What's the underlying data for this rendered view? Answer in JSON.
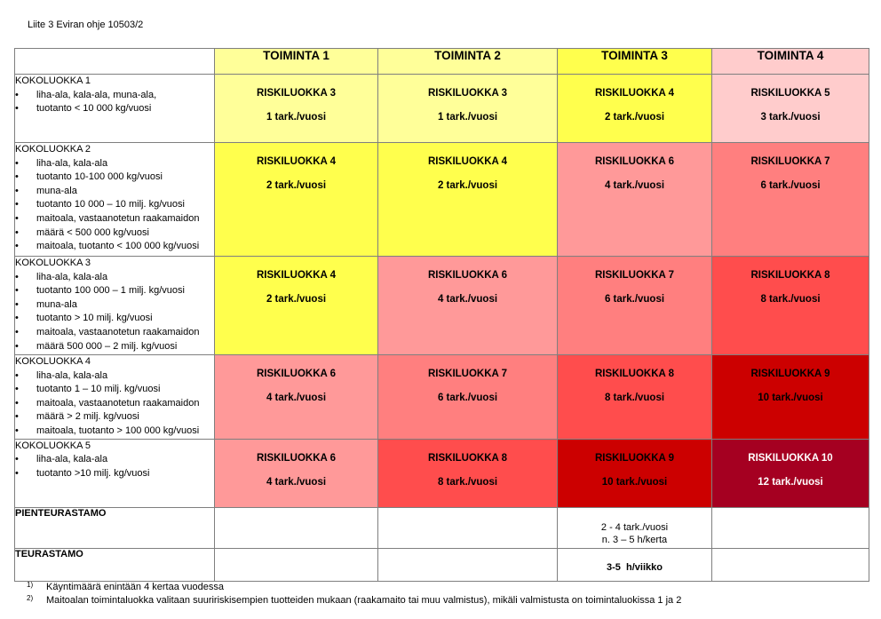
{
  "header": "Liite 3 Eviran ohje 10503/2",
  "columns": [
    "TOIMINTA 1",
    "TOIMINTA 2",
    "TOIMINTA 3",
    "TOIMINTA 4"
  ],
  "header_colors": [
    "#FFFF99",
    "#FFFF99",
    "#FFFF4D",
    "#FFCCCC"
  ],
  "rows": [
    {
      "category": "KOKOLUOKKA 1",
      "items": [
        "liha-ala, kala-ala, muna-ala,",
        "tuotanto < 10 000 kg/vuosi"
      ],
      "cells": [
        {
          "risk": "RISKILUOKKA 3",
          "inspections": "1  tark./vuosi",
          "color": "#FFFF99",
          "text_color": "#000000"
        },
        {
          "risk": "RISKILUOKKA 3",
          "inspections": "1 tark./vuosi",
          "color": "#FFFF99",
          "text_color": "#000000"
        },
        {
          "risk": "RISKILUOKKA 4",
          "inspections": "2 tark./vuosi",
          "color": "#FFFF4D",
          "text_color": "#000000"
        },
        {
          "risk": "RISKILUOKKA 5",
          "inspections": "3 tark./vuosi",
          "color": "#FFCCCC",
          "text_color": "#000000"
        }
      ]
    },
    {
      "category": "KOKOLUOKKA 2",
      "items": [
        "liha-ala, kala-ala",
        "tuotanto 10-100 000 kg/vuosi",
        "muna-ala",
        "tuotanto 10 000 – 10 milj. kg/vuosi",
        "maitoala, vastaanotetun raakamaidon",
        "määrä < 500 000 kg/vuosi",
        "maitoala, tuotanto < 100 000 kg/vuosi"
      ],
      "cells": [
        {
          "risk": "RISKILUOKKA 4",
          "inspections": "2 tark./vuosi",
          "color": "#FFFF4D",
          "text_color": "#000000"
        },
        {
          "risk": "RISKILUOKKA 4",
          "inspections": "2 tark./vuosi",
          "color": "#FFFF4D",
          "text_color": "#000000"
        },
        {
          "risk": "RISKILUOKKA 6",
          "inspections": "4 tark./vuosi",
          "color": "#FF9999",
          "text_color": "#000000"
        },
        {
          "risk": "RISKILUOKKA 7",
          "inspections": "6 tark./vuosi",
          "color": "#FF7F7F",
          "text_color": "#000000"
        }
      ]
    },
    {
      "category": "KOKOLUOKKA 3",
      "items": [
        "liha-ala, kala-ala",
        "tuotanto 100 000 – 1 milj. kg/vuosi",
        "muna-ala",
        "tuotanto > 10 milj. kg/vuosi",
        "maitoala, vastaanotetun raakamaidon",
        "määrä 500 000 – 2 milj. kg/vuosi"
      ],
      "cells": [
        {
          "risk": "RISKILUOKKA 4",
          "inspections": "2 tark./vuosi",
          "color": "#FFFF4D",
          "text_color": "#000000"
        },
        {
          "risk": "RISKILUOKKA 6",
          "inspections": "4 tark./vuosi",
          "color": "#FF9999",
          "text_color": "#000000"
        },
        {
          "risk": "RISKILUOKKA 7",
          "inspections": "6 tark./vuosi",
          "color": "#FF7F7F",
          "text_color": "#000000"
        },
        {
          "risk": "RISKILUOKKA 8",
          "inspections": "8 tark./vuosi",
          "color": "#FF4D4D",
          "text_color": "#000000"
        }
      ]
    },
    {
      "category": "KOKOLUOKKA 4",
      "items": [
        "liha-ala, kala-ala",
        "tuotanto 1 – 10 milj. kg/vuosi",
        "maitoala, vastaanotetun raakamaidon",
        "määrä > 2 milj. kg/vuosi",
        "maitoala, tuotanto > 100 000 kg/vuosi"
      ],
      "cells": [
        {
          "risk": "RISKILUOKKA 6",
          "inspections": "4 tark./vuosi",
          "color": "#FF9999",
          "text_color": "#000000"
        },
        {
          "risk": "RISKILUOKKA 7",
          "inspections": "6 tark./vuosi",
          "color": "#FF7F7F",
          "text_color": "#000000"
        },
        {
          "risk": "RISKILUOKKA 8",
          "inspections": "8 tark./vuosi",
          "color": "#FF4D4D",
          "text_color": "#000000"
        },
        {
          "risk": "RISKILUOKKA 9",
          "inspections": "10 tark./vuosi",
          "color": "#CC0000",
          "text_color": "#000000"
        }
      ]
    },
    {
      "category": "KOKOLUOKKA 5",
      "items": [
        "liha-ala, kala-ala",
        "tuotanto >10 milj. kg/vuosi"
      ],
      "cells": [
        {
          "risk": "RISKILUOKKA 6",
          "inspections": "4 tark./vuosi",
          "color": "#FF9999",
          "text_color": "#000000"
        },
        {
          "risk": "RISKILUOKKA 8",
          "inspections": "8 tark./vuosi",
          "color": "#FF4D4D",
          "text_color": "#000000"
        },
        {
          "risk": "RISKILUOKKA 9",
          "inspections": "10 tark./vuosi",
          "color": "#CC0000",
          "text_color": "#000000"
        },
        {
          "risk": "RISKILUOKKA 10",
          "inspections": "12 tark./vuosi",
          "color": "#A50021",
          "text_color": "#FFFFFF"
        }
      ]
    }
  ],
  "special_rows": [
    {
      "label": "PIENTEURASTAMO",
      "toiminta3_lines": [
        "2 - 4 tark./vuosi",
        "n. 3 – 5 h/kerta"
      ]
    },
    {
      "label": "TEURASTAMO",
      "toiminta3_lines": [
        "3-5  h/viikko"
      ]
    }
  ],
  "footnotes": [
    {
      "mark": "1)",
      "text": "Käyntimäärä enintään 4 kertaa vuodessa"
    },
    {
      "mark": "2)",
      "text": "Maitoalan toimintaluokka valitaan suuririskisempien tuotteiden mukaan (raakamaito tai muu valmistus), mikäli valmistusta on toimintaluokissa 1 ja 2"
    }
  ]
}
